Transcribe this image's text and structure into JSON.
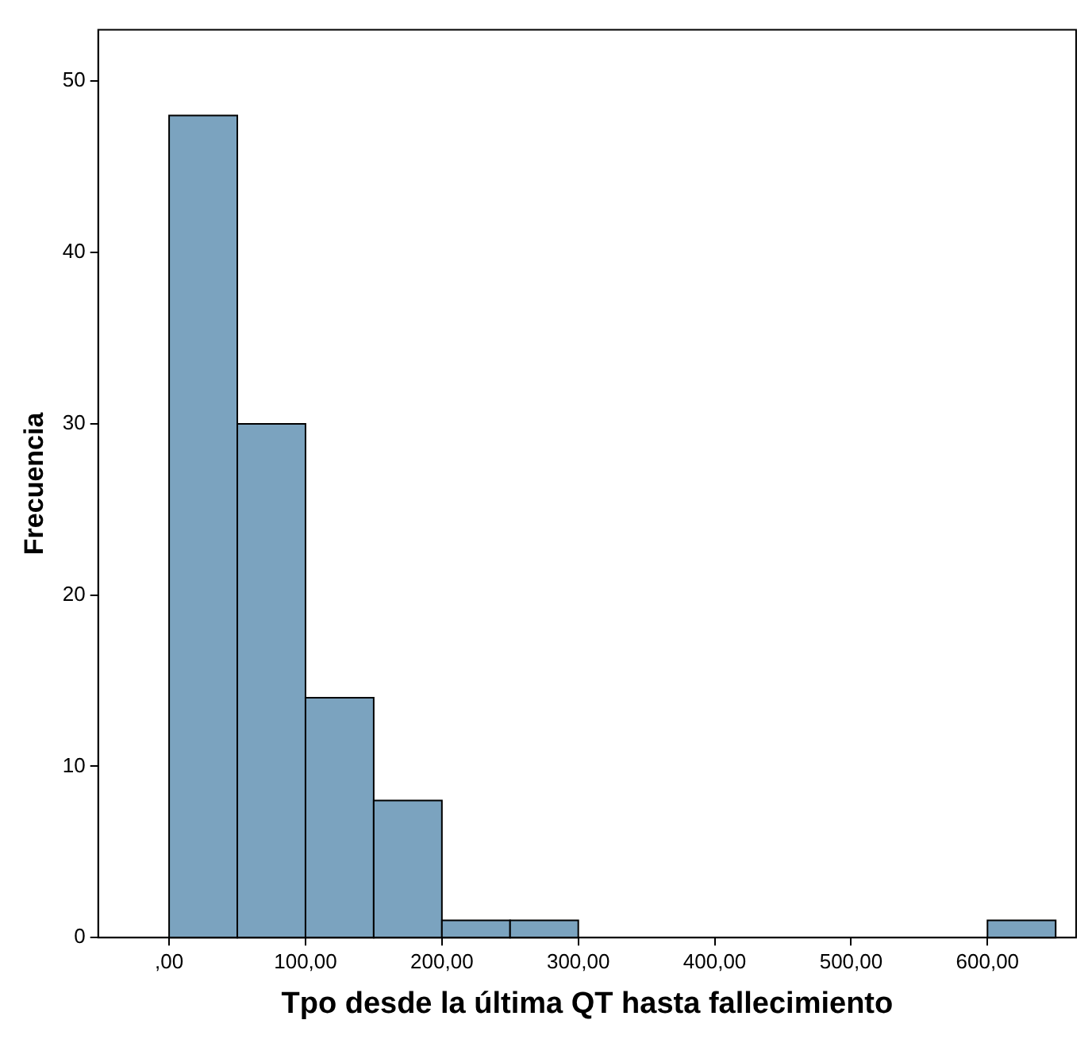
{
  "chart_data": {
    "type": "histogram",
    "xlabel": "Tpo desde la última QT hasta fallecimiento",
    "ylabel": "Frecuencia",
    "bins": [
      0,
      50,
      100,
      150,
      200,
      250,
      300,
      350,
      400,
      450,
      500,
      550,
      600,
      650
    ],
    "values": [
      48,
      30,
      14,
      8,
      1,
      1,
      0,
      0,
      0,
      0,
      0,
      0,
      1
    ],
    "color": "#7ba3bf",
    "xlim": [
      -52,
      665
    ],
    "ylim": [
      0,
      53
    ],
    "xticks": [
      {
        "value": 0,
        "label": ",00"
      },
      {
        "value": 100,
        "label": "100,00"
      },
      {
        "value": 200,
        "label": "200,00"
      },
      {
        "value": 300,
        "label": "300,00"
      },
      {
        "value": 400,
        "label": "400,00"
      },
      {
        "value": 500,
        "label": "500,00"
      },
      {
        "value": 600,
        "label": "600,00"
      }
    ],
    "yticks": [
      0,
      10,
      20,
      30,
      40,
      50
    ],
    "grid": false,
    "legend": false
  }
}
